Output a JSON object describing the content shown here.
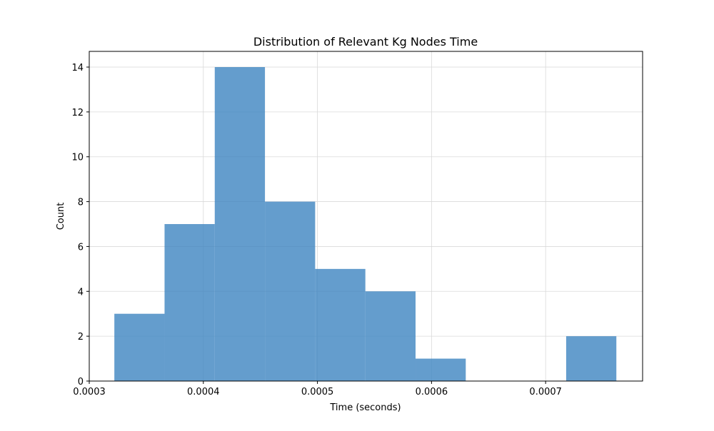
{
  "chart_data": {
    "type": "bar",
    "title": "Distribution of Relevant Kg Nodes Time",
    "xlabel": "Time (seconds)",
    "ylabel": "Count",
    "xlim": [
      0.0003,
      0.000785
    ],
    "ylim": [
      0,
      14.7
    ],
    "grid": true,
    "bins": [
      {
        "start": 0.000322,
        "end": 0.000366,
        "count": 3
      },
      {
        "start": 0.000366,
        "end": 0.00041,
        "count": 7
      },
      {
        "start": 0.00041,
        "end": 0.000454,
        "count": 14
      },
      {
        "start": 0.000454,
        "end": 0.000498,
        "count": 8
      },
      {
        "start": 0.000498,
        "end": 0.000542,
        "count": 5
      },
      {
        "start": 0.000542,
        "end": 0.000586,
        "count": 4
      },
      {
        "start": 0.000586,
        "end": 0.00063,
        "count": 1
      },
      {
        "start": 0.00063,
        "end": 0.000674,
        "count": 0
      },
      {
        "start": 0.000674,
        "end": 0.000718,
        "count": 0
      },
      {
        "start": 0.000718,
        "end": 0.000762,
        "count": 2
      }
    ],
    "x_ticks": [
      {
        "value": 0.0003,
        "label": "0.0003"
      },
      {
        "value": 0.0004,
        "label": "0.0004"
      },
      {
        "value": 0.0005,
        "label": "0.0005"
      },
      {
        "value": 0.0006,
        "label": "0.0006"
      },
      {
        "value": 0.0007,
        "label": "0.0007"
      }
    ],
    "y_ticks": [
      {
        "value": 0,
        "label": "0"
      },
      {
        "value": 2,
        "label": "2"
      },
      {
        "value": 4,
        "label": "4"
      },
      {
        "value": 6,
        "label": "6"
      },
      {
        "value": 8,
        "label": "8"
      },
      {
        "value": 10,
        "label": "10"
      },
      {
        "value": 12,
        "label": "12"
      },
      {
        "value": 14,
        "label": "14"
      }
    ],
    "colors": {
      "bar": "#3d85c0",
      "grid": "#d9d9d9",
      "axis": "#000000"
    }
  }
}
